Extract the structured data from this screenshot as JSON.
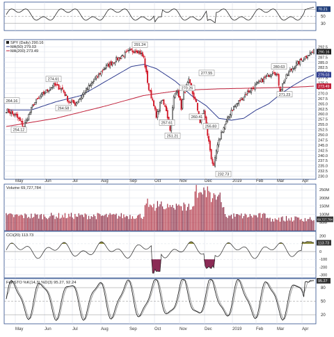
{
  "chart_data": [
    {
      "type": "line",
      "panel": "rsi",
      "ticks": [
        "70",
        "50",
        "30"
      ],
      "last_value": "70.21",
      "ylim": [
        10,
        90
      ]
    },
    {
      "type": "candlestick",
      "panel": "price",
      "legend": [
        "SPY (Daily) 290.16",
        "MA(50) 279.03",
        "MA(200) 273.49"
      ],
      "ylim": [
        228.5,
        296
      ],
      "ticks": [
        "292.5",
        "290.0",
        "287.5",
        "285.0",
        "282.5",
        "280.0",
        "277.5",
        "275.0",
        "272.5",
        "270.0",
        "267.5",
        "265.0",
        "262.5",
        "260.0",
        "257.5",
        "255.0",
        "252.5",
        "250.0",
        "247.5",
        "245.0",
        "242.5",
        "240.0",
        "237.5",
        "235.0",
        "232.5",
        "230.0"
      ],
      "ticks_vals": [
        292.5,
        290,
        287.5,
        285,
        282.5,
        280,
        277.5,
        275,
        272.5,
        270,
        267.5,
        265,
        262.5,
        260,
        257.5,
        255,
        252.5,
        250,
        247.5,
        245,
        242.5,
        240,
        237.5,
        235,
        232.5,
        230
      ],
      "right_badges": [
        "290.16",
        "279.03",
        "273.49"
      ],
      "right_badge_vals": [
        290.16,
        279.03,
        273.49
      ],
      "annotations": [
        "264.16",
        "254.12",
        "274.61",
        "264.58",
        "291.24",
        "257.61",
        "251.21",
        "270.26",
        "260.41",
        "277.55",
        "255.83",
        "232.73",
        "280.63",
        "271.23"
      ],
      "annotation_vals": [
        264.16,
        254.12,
        274.61,
        264.58,
        291.24,
        257.61,
        251.21,
        270.26,
        260.41,
        277.55,
        255.83,
        232.73,
        280.63,
        271.23
      ],
      "months": [
        "May",
        "Jun",
        "Jul",
        "Aug",
        "Sep",
        "Oct",
        "Nov",
        "Dec",
        "2019",
        "Feb",
        "Mar",
        "Apr"
      ],
      "price_anchors": [
        [
          0,
          262
        ],
        [
          8,
          259
        ],
        [
          14,
          254
        ],
        [
          22,
          265
        ],
        [
          30,
          270
        ],
        [
          38,
          274
        ],
        [
          45,
          272
        ],
        [
          50,
          266
        ],
        [
          55,
          265
        ],
        [
          62,
          270
        ],
        [
          70,
          276
        ],
        [
          78,
          282
        ],
        [
          85,
          285
        ],
        [
          92,
          288
        ],
        [
          98,
          290
        ],
        [
          104,
          291
        ],
        [
          108,
          289
        ],
        [
          110,
          287
        ],
        [
          114,
          272
        ],
        [
          118,
          265
        ],
        [
          120,
          258
        ],
        [
          124,
          267
        ],
        [
          128,
          262
        ],
        [
          131,
          252
        ],
        [
          134,
          268
        ],
        [
          137,
          272
        ],
        [
          140,
          263
        ],
        [
          142,
          270
        ],
        [
          146,
          276
        ],
        [
          149,
          270
        ],
        [
          152,
          265
        ],
        [
          155,
          256
        ],
        [
          158,
          262
        ],
        [
          161,
          250
        ],
        [
          164,
          239
        ],
        [
          166,
          234
        ],
        [
          168,
          242
        ],
        [
          172,
          251
        ],
        [
          176,
          256
        ],
        [
          180,
          262
        ],
        [
          186,
          266
        ],
        [
          192,
          270
        ],
        [
          198,
          273
        ],
        [
          204,
          276
        ],
        [
          210,
          279
        ],
        [
          214,
          281
        ],
        [
          217,
          278
        ],
        [
          219,
          271
        ],
        [
          222,
          276
        ],
        [
          226,
          280
        ],
        [
          230,
          283
        ],
        [
          234,
          285
        ],
        [
          238,
          287
        ],
        [
          242,
          289
        ],
        [
          246,
          290.2
        ]
      ],
      "ma50_anchors": [
        [
          0,
          262
        ],
        [
          20,
          262
        ],
        [
          40,
          266
        ],
        [
          60,
          269
        ],
        [
          80,
          276
        ],
        [
          100,
          283
        ],
        [
          110,
          284
        ],
        [
          120,
          282
        ],
        [
          135,
          276
        ],
        [
          150,
          268
        ],
        [
          160,
          264
        ],
        [
          170,
          258
        ],
        [
          180,
          257
        ],
        [
          190,
          258
        ],
        [
          200,
          262
        ],
        [
          210,
          265
        ],
        [
          220,
          270
        ],
        [
          230,
          274
        ],
        [
          240,
          277.5
        ],
        [
          246,
          279.03
        ]
      ],
      "ma200_anchors": [
        [
          0,
          254
        ],
        [
          40,
          258
        ],
        [
          80,
          264
        ],
        [
          110,
          269
        ],
        [
          140,
          271.5
        ],
        [
          170,
          272.2
        ],
        [
          200,
          272.6
        ],
        [
          230,
          273.0
        ],
        [
          246,
          273.49
        ]
      ]
    },
    {
      "type": "bar",
      "panel": "volume",
      "legend": "Volume 69,727,784",
      "ticks": [
        "250M",
        "200M",
        "150M",
        "100M",
        "50M"
      ],
      "ticks_vals": [
        250,
        200,
        150,
        100,
        50
      ],
      "last_value": "69,727,784",
      "ylim": [
        0,
        285
      ]
    },
    {
      "type": "line",
      "panel": "cci",
      "legend": "CCI(20) 113.73",
      "ticks": [
        "200",
        "100",
        "0",
        "-100",
        "-200",
        "-300"
      ],
      "ticks_vals": [
        200,
        100,
        0,
        -100,
        -200,
        -300
      ],
      "last_value": "113.73",
      "ylim": [
        -340,
        260
      ]
    },
    {
      "type": "line",
      "panel": "stochastic",
      "legend": "Full STO %K(14,3) %D(3) 95.27, 92.24",
      "ticks": [
        "80",
        "50",
        "20"
      ],
      "ticks_vals": [
        80,
        50,
        20
      ],
      "last_value": "95.27",
      "ylim": [
        0,
        100
      ]
    }
  ],
  "x_axis_months": [
    "May",
    "Jun",
    "Jul",
    "Aug",
    "Sep",
    "Oct",
    "Nov",
    "Dec",
    "2019",
    "Feb",
    "Mar",
    "Apr"
  ],
  "colors": {
    "up": "#111111",
    "down": "#d11a2a",
    "ma50": "#2f3c8f",
    "ma200": "#c0203a",
    "panel_border": "#2b4b8a",
    "grid": "#d9dee8",
    "volume_bar": "#8e3048",
    "volume_bar_down": "#b33a4a",
    "cci_pos": "#8c8a3a",
    "cci_neg": "#8b2a55",
    "badge_bg": "#1f3d7a"
  }
}
